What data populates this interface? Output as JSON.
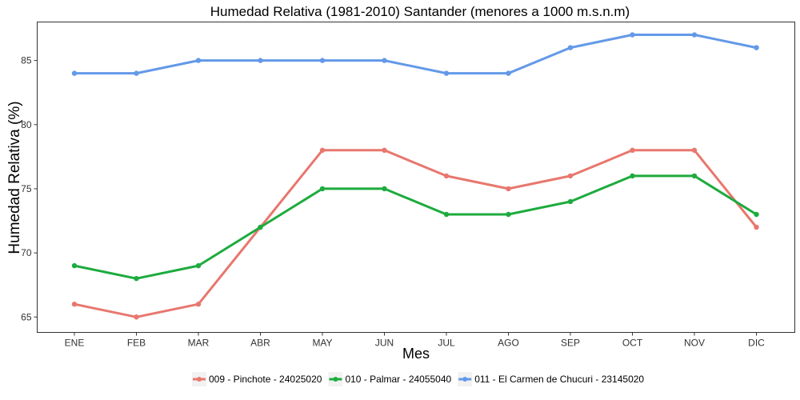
{
  "chart_data": {
    "type": "line",
    "title": "Humedad Relativa (1981-2010) Santander (menores a 1000 m.s.n.m)",
    "xlabel": "Mes",
    "ylabel": "Humedad Relativa (%)",
    "categories": [
      "ENE",
      "FEB",
      "MAR",
      "ABR",
      "MAY",
      "JUN",
      "JUL",
      "AGO",
      "SEP",
      "OCT",
      "NOV",
      "DIC"
    ],
    "ylim": [
      63.8,
      88
    ],
    "yticks": [
      65,
      70,
      75,
      80,
      85
    ],
    "grid": false,
    "legend_position": "bottom",
    "series": [
      {
        "name": "009 - Pinchote - 24025020",
        "color": "#E8776E",
        "values": [
          66,
          65,
          66,
          72,
          78,
          78,
          76,
          75,
          76,
          78,
          78,
          72
        ]
      },
      {
        "name": "010 - Palmar - 24055040",
        "color": "#1DAB3E",
        "values": [
          69,
          68,
          69,
          72,
          75,
          75,
          73,
          73,
          74,
          76,
          76,
          73
        ]
      },
      {
        "name": "011 - El Carmen de Chucuri - 23145020",
        "color": "#6399E8",
        "values": [
          84,
          84,
          85,
          85,
          85,
          85,
          84,
          84,
          86,
          87,
          87,
          86
        ]
      }
    ]
  }
}
